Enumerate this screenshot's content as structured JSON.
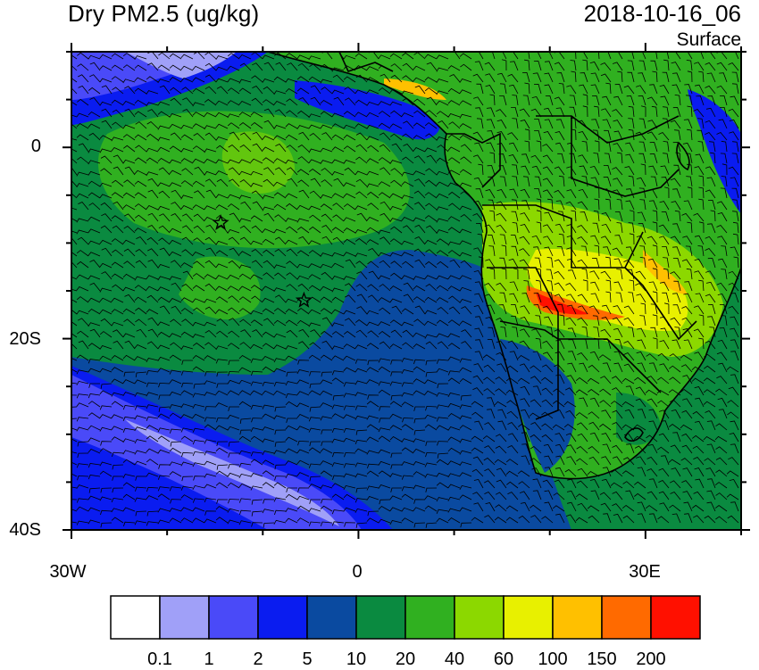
{
  "header": {
    "title": "Dry PM2.5 (ug/kg)",
    "datetime": "2018-10-16_06",
    "level": "Surface"
  },
  "map": {
    "lat_labels": [
      "0",
      "20S",
      "40S"
    ],
    "lon_labels": [
      "30W",
      "0",
      "30E"
    ],
    "extent": {
      "lon": [
        -30,
        40
      ],
      "lat": [
        -40,
        10
      ]
    },
    "station_markers": [
      {
        "symbol": "star",
        "lon": -14.4,
        "lat": -7.9
      },
      {
        "symbol": "star",
        "lon": -5.7,
        "lat": -16.0
      }
    ]
  },
  "colorbar": {
    "thresholds": [
      "0.1",
      "1",
      "2",
      "5",
      "10",
      "20",
      "40",
      "60",
      "100",
      "150",
      "200"
    ],
    "colors": [
      "#ffffff",
      "#a0a0f8",
      "#4a4af8",
      "#0a1cf0",
      "#0a4aa0",
      "#0a8a40",
      "#30b020",
      "#8cd800",
      "#e8f000",
      "#ffc000",
      "#ff6a00",
      "#ff1000"
    ]
  }
}
